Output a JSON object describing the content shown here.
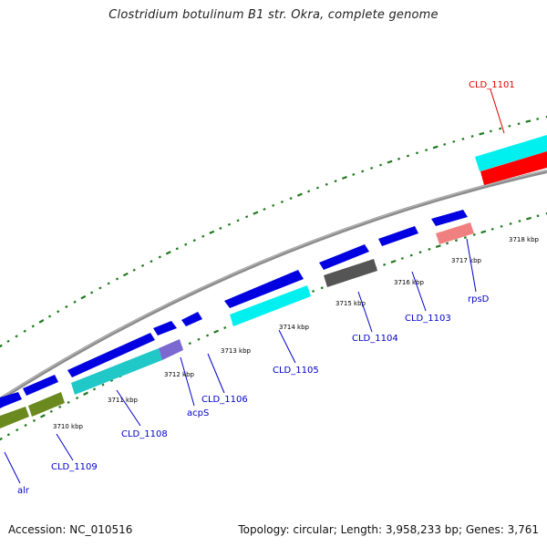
{
  "title": "Clostridium botulinum B1 str. Okra, complete genome",
  "footer": {
    "accession": "Accession: NC_010516",
    "summary": "Topology: circular; Length: 3,958,233 bp; Genes: 3,761"
  },
  "colors": {
    "tick": "#1f7a1f",
    "backbone": "#8c8c8c",
    "gene_blue": "#0000e0",
    "gene_cyan": "#00f0f0",
    "gene_red": "#ff0000",
    "gene_olive": "#6a8a1f",
    "gene_gray": "#555555",
    "gene_lavender": "#7b68d0",
    "gene_pink": "#f08080",
    "label_blue": "#0000cc",
    "label_red": "#e00000"
  },
  "kbp_labels": [
    "3710 kbp",
    "3711 kbp",
    "3712 kbp",
    "3713 kbp",
    "3714 kbp",
    "3715 kbp",
    "3716 kbp",
    "3717 kbp",
    "3718 kbp"
  ],
  "gene_labels": [
    "CLD_1101",
    "rpsD",
    "CLD_1103",
    "CLD_1104",
    "CLD_1105",
    "CLD_1106",
    "acpS",
    "CLD_1108",
    "CLD_1109",
    "alr"
  ]
}
